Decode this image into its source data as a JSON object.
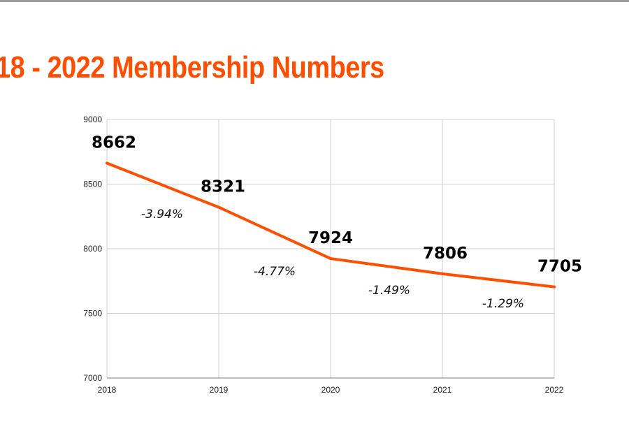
{
  "slide": {
    "title": "18 - 2022 Membership Numbers",
    "title_color": "#ff4e00"
  },
  "chart_data": {
    "type": "line",
    "x": [
      "2018",
      "2019",
      "2020",
      "2021",
      "2022"
    ],
    "series": [
      {
        "values": [
          8662,
          8321,
          7924,
          7806,
          7705
        ],
        "color": "#ff4e00"
      }
    ],
    "data_labels": [
      "8662",
      "8321",
      "7924",
      "7806",
      "7705"
    ],
    "change_labels": [
      "-3.94%",
      "-4.77%",
      "-1.49%",
      "-1.29%"
    ],
    "y_ticks": [
      7000,
      7500,
      8000,
      8500,
      9000
    ],
    "ylim": [
      7000,
      9000
    ],
    "grid": true,
    "legend": "none"
  }
}
